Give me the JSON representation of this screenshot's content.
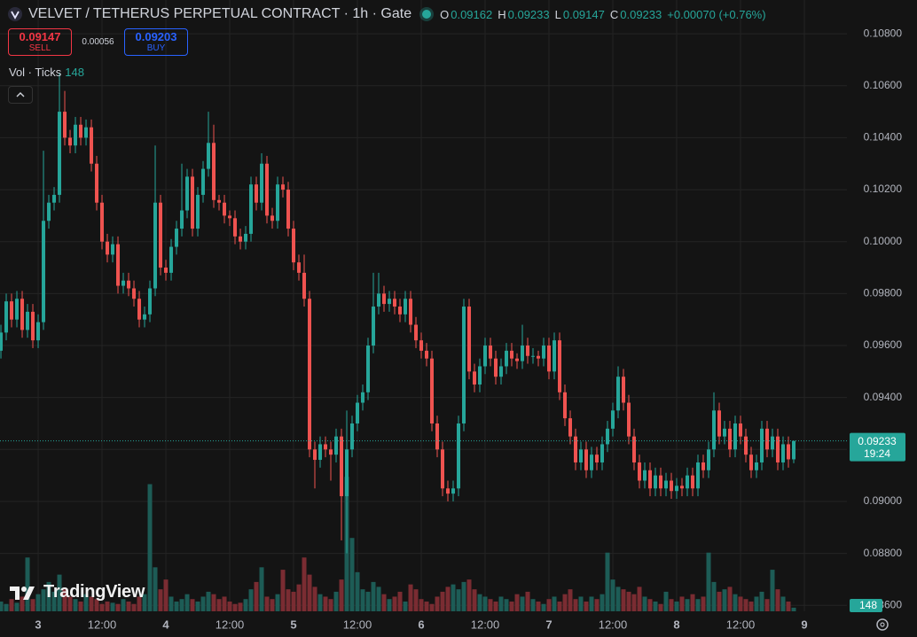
{
  "header": {
    "title": "VELVET / TETHERUS PERPETUAL CONTRACT · 1h · Gate",
    "ohlc": [
      {
        "label": "O",
        "value": "0.09162"
      },
      {
        "label": "H",
        "value": "0.09233"
      },
      {
        "label": "L",
        "value": "0.09147"
      },
      {
        "label": "C",
        "value": "0.09233"
      }
    ],
    "change": "+0.00070 (+0.76%)"
  },
  "trade": {
    "sell_price": "0.09147",
    "sell_label": "SELL",
    "spread": "0.00056",
    "buy_price": "0.09203",
    "buy_label": "BUY"
  },
  "volume_legend": {
    "label": "Vol · Ticks",
    "value": "148"
  },
  "watermark": "TradingView",
  "chart_data": {
    "type": "candlestick",
    "up_color": "#26a69a",
    "down_color": "#ef5350",
    "volume_up_color": "#1d5c56",
    "volume_down_color": "#7a2c32",
    "grid": true,
    "countdown": "19:24",
    "xlim": [
      -0.17,
      159
    ],
    "xticks": [
      {
        "value": 7,
        "label": "3"
      },
      {
        "value": 19,
        "label": "12:00"
      },
      {
        "value": 31,
        "label": "4"
      },
      {
        "value": 43,
        "label": "12:00"
      },
      {
        "value": 55,
        "label": "5"
      },
      {
        "value": 67,
        "label": "12:00"
      },
      {
        "value": 79,
        "label": "6"
      },
      {
        "value": 91,
        "label": "12:00"
      },
      {
        "value": 103,
        "label": "7"
      },
      {
        "value": 115,
        "label": "12:00"
      },
      {
        "value": 127,
        "label": "8"
      },
      {
        "value": 139,
        "label": "12:00"
      },
      {
        "value": 151,
        "label": "9"
      }
    ],
    "ylim": [
      0.08577,
      0.1093
    ],
    "yticks": [
      {
        "value": 0.108,
        "label": "0.10800"
      },
      {
        "value": 0.106,
        "label": "0.10600"
      },
      {
        "value": 0.104,
        "label": "0.10400"
      },
      {
        "value": 0.102,
        "label": "0.10200"
      },
      {
        "value": 0.1,
        "label": "0.10000"
      },
      {
        "value": 0.098,
        "label": "0.09800"
      },
      {
        "value": 0.096,
        "label": "0.09600"
      },
      {
        "value": 0.094,
        "label": "0.09400"
      },
      {
        "value": 0.092,
        "label": "0.09200"
      },
      {
        "value": 0.09,
        "label": "0.09000"
      },
      {
        "value": 0.088,
        "label": "0.08800"
      },
      {
        "value": 0.086,
        "label": "0.08600"
      }
    ],
    "volume_ylim": [
      0,
      25000
    ],
    "open": [
      0.0958,
      0.0965,
      0.0977,
      0.097,
      0.0978,
      0.0966,
      0.0973,
      0.0962,
      0.0969,
      0.1008,
      0.1015,
      0.1018,
      0.105,
      0.104,
      0.1037,
      0.1045,
      0.104,
      0.1044,
      0.103,
      0.1015,
      0.1,
      0.0995,
      0.0999,
      0.0983,
      0.0985,
      0.0982,
      0.0978,
      0.097,
      0.0972,
      0.0982,
      0.1015,
      0.099,
      0.0988,
      0.0998,
      0.1005,
      0.1012,
      0.1025,
      0.1005,
      0.1018,
      0.1028,
      0.1038,
      0.1016,
      0.1015,
      0.101,
      0.1009,
      0.1002,
      0.1,
      0.1003,
      0.1022,
      0.1015,
      0.103,
      0.101,
      0.1008,
      0.1022,
      0.102,
      0.1005,
      0.0992,
      0.0988,
      0.0978,
      0.092,
      0.0916,
      0.0922,
      0.092,
      0.0918,
      0.0925,
      0.0902,
      0.092,
      0.093,
      0.0938,
      0.0942,
      0.096,
      0.0975,
      0.098,
      0.0976,
      0.0978,
      0.0975,
      0.0972,
      0.0978,
      0.0968,
      0.0962,
      0.0958,
      0.0955,
      0.093,
      0.092,
      0.0905,
      0.0903,
      0.0905,
      0.093,
      0.0975,
      0.095,
      0.0945,
      0.0952,
      0.096,
      0.0955,
      0.0948,
      0.0952,
      0.0958,
      0.0955,
      0.0954,
      0.096,
      0.0956,
      0.0956,
      0.0955,
      0.096,
      0.095,
      0.0962,
      0.0942,
      0.0932,
      0.0925,
      0.0915,
      0.092,
      0.0912,
      0.0918,
      0.0915,
      0.0922,
      0.0928,
      0.0935,
      0.0948,
      0.0938,
      0.0925,
      0.0915,
      0.0908,
      0.0912,
      0.0905,
      0.091,
      0.0905,
      0.0908,
      0.0904,
      0.0906,
      0.0905,
      0.091,
      0.0905,
      0.0915,
      0.0912,
      0.092,
      0.0935,
      0.0925,
      0.0928,
      0.092,
      0.093,
      0.0925,
      0.0918,
      0.0912,
      0.0915,
      0.0928,
      0.092,
      0.0925,
      0.0915,
      0.0922,
      0.09162
    ],
    "high": [
      0.0968,
      0.098,
      0.098,
      0.0981,
      0.0981,
      0.0976,
      0.0976,
      0.0972,
      0.1035,
      0.1018,
      0.1021,
      0.1065,
      0.1058,
      0.1043,
      0.1048,
      0.1048,
      0.1047,
      0.1047,
      0.1033,
      0.1018,
      0.1003,
      0.1002,
      0.1002,
      0.0988,
      0.0988,
      0.0985,
      0.0981,
      0.0975,
      0.0985,
      0.1037,
      0.1018,
      0.0993,
      0.1001,
      0.1008,
      0.103,
      0.1028,
      0.1028,
      0.1021,
      0.1031,
      0.105,
      0.1045,
      0.1018,
      0.1018,
      0.1012,
      0.1012,
      0.1005,
      0.1006,
      0.1025,
      0.1025,
      0.1034,
      0.1033,
      0.1013,
      0.1025,
      0.1025,
      0.1023,
      0.1008,
      0.0995,
      0.0995,
      0.0981,
      0.0923,
      0.0925,
      0.0925,
      0.0923,
      0.0928,
      0.0928,
      0.0935,
      0.0933,
      0.0941,
      0.0945,
      0.0963,
      0.0988,
      0.0988,
      0.0983,
      0.0981,
      0.0981,
      0.0978,
      0.0981,
      0.0981,
      0.0971,
      0.0965,
      0.0961,
      0.0958,
      0.0933,
      0.0923,
      0.0908,
      0.0908,
      0.0933,
      0.0978,
      0.0978,
      0.0953,
      0.0955,
      0.0963,
      0.0963,
      0.0958,
      0.0955,
      0.0961,
      0.0961,
      0.0957,
      0.0968,
      0.0963,
      0.0959,
      0.0958,
      0.0963,
      0.0963,
      0.0965,
      0.0965,
      0.0945,
      0.0935,
      0.0928,
      0.0923,
      0.0923,
      0.0921,
      0.0921,
      0.0925,
      0.0931,
      0.0938,
      0.0952,
      0.0951,
      0.0941,
      0.0928,
      0.0918,
      0.0915,
      0.0915,
      0.0913,
      0.0913,
      0.0911,
      0.0911,
      0.0909,
      0.0909,
      0.0913,
      0.0913,
      0.0918,
      0.0918,
      0.0923,
      0.0942,
      0.0938,
      0.0931,
      0.0931,
      0.0933,
      0.0933,
      0.0928,
      0.0921,
      0.0918,
      0.0931,
      0.0931,
      0.0928,
      0.0928,
      0.0925,
      0.0925,
      0.09233
    ],
    "low": [
      0.0955,
      0.0962,
      0.0967,
      0.0967,
      0.0963,
      0.0963,
      0.0959,
      0.0959,
      0.0966,
      0.1005,
      0.1012,
      0.1015,
      0.1037,
      0.1034,
      0.1034,
      0.1037,
      0.1037,
      0.1027,
      0.1012,
      0.0997,
      0.0992,
      0.0992,
      0.098,
      0.098,
      0.0979,
      0.0975,
      0.0967,
      0.0967,
      0.0969,
      0.0979,
      0.0987,
      0.0985,
      0.0985,
      0.0995,
      0.1002,
      0.1009,
      0.1002,
      0.1002,
      0.1015,
      0.1025,
      0.1013,
      0.1012,
      0.1007,
      0.1006,
      0.0999,
      0.0997,
      0.0997,
      0.1,
      0.1012,
      0.1012,
      0.1007,
      0.1005,
      0.1005,
      0.1017,
      0.1002,
      0.0989,
      0.0985,
      0.0975,
      0.0917,
      0.0905,
      0.0913,
      0.0917,
      0.0908,
      0.0915,
      0.0885,
      0.088,
      0.0917,
      0.0927,
      0.0935,
      0.0939,
      0.0957,
      0.0972,
      0.0973,
      0.0973,
      0.0972,
      0.0969,
      0.0969,
      0.0965,
      0.0959,
      0.0955,
      0.0952,
      0.0927,
      0.0917,
      0.0902,
      0.09,
      0.09,
      0.0902,
      0.0927,
      0.0947,
      0.0942,
      0.0942,
      0.0949,
      0.0952,
      0.0945,
      0.0945,
      0.0949,
      0.0952,
      0.0951,
      0.0951,
      0.0953,
      0.0953,
      0.0952,
      0.0952,
      0.0947,
      0.0947,
      0.0939,
      0.0929,
      0.0922,
      0.0912,
      0.0912,
      0.0909,
      0.0909,
      0.0912,
      0.0912,
      0.0919,
      0.0925,
      0.0932,
      0.0935,
      0.0922,
      0.0912,
      0.0905,
      0.0905,
      0.0902,
      0.0902,
      0.0902,
      0.0902,
      0.0901,
      0.0901,
      0.0902,
      0.0902,
      0.0902,
      0.0902,
      0.0909,
      0.0909,
      0.0917,
      0.0922,
      0.0922,
      0.0917,
      0.0917,
      0.0922,
      0.0915,
      0.0909,
      0.0909,
      0.0912,
      0.0917,
      0.0917,
      0.0912,
      0.0912,
      0.0913,
      0.09147
    ],
    "close": [
      0.0965,
      0.0977,
      0.097,
      0.0978,
      0.0966,
      0.0973,
      0.0962,
      0.0969,
      0.1008,
      0.1015,
      0.1018,
      0.105,
      0.104,
      0.1037,
      0.1045,
      0.104,
      0.1044,
      0.103,
      0.1015,
      0.1,
      0.0995,
      0.0999,
      0.0983,
      0.0985,
      0.0982,
      0.0978,
      0.097,
      0.0972,
      0.0982,
      0.1015,
      0.099,
      0.0988,
      0.0998,
      0.1005,
      0.1012,
      0.1025,
      0.1005,
      0.1018,
      0.1028,
      0.1038,
      0.1016,
      0.1015,
      0.101,
      0.1009,
      0.1002,
      0.1,
      0.1003,
      0.1022,
      0.1015,
      0.103,
      0.101,
      0.1008,
      0.1022,
      0.102,
      0.1005,
      0.0992,
      0.0988,
      0.0978,
      0.092,
      0.0916,
      0.0922,
      0.092,
      0.0918,
      0.0925,
      0.0902,
      0.092,
      0.093,
      0.0938,
      0.0942,
      0.096,
      0.0975,
      0.098,
      0.0976,
      0.0978,
      0.0975,
      0.0972,
      0.0978,
      0.0968,
      0.0962,
      0.0958,
      0.0955,
      0.093,
      0.092,
      0.0905,
      0.0903,
      0.0905,
      0.093,
      0.0975,
      0.095,
      0.0945,
      0.0952,
      0.096,
      0.0955,
      0.0948,
      0.0952,
      0.0958,
      0.0955,
      0.0954,
      0.096,
      0.0956,
      0.0956,
      0.0955,
      0.096,
      0.095,
      0.0962,
      0.0942,
      0.0932,
      0.0925,
      0.0915,
      0.092,
      0.0912,
      0.0918,
      0.0915,
      0.0922,
      0.0928,
      0.0935,
      0.0948,
      0.0938,
      0.0925,
      0.0915,
      0.0908,
      0.0912,
      0.0905,
      0.091,
      0.0905,
      0.0908,
      0.0904,
      0.0906,
      0.0905,
      0.091,
      0.0905,
      0.0915,
      0.0912,
      0.092,
      0.0935,
      0.0925,
      0.0928,
      0.092,
      0.093,
      0.0925,
      0.0918,
      0.0912,
      0.0915,
      0.0928,
      0.092,
      0.0925,
      0.0915,
      0.0922,
      0.09162,
      0.09233
    ],
    "volume": [
      400,
      300,
      500,
      350,
      600,
      2200,
      500,
      700,
      900,
      1200,
      800,
      1500,
      900,
      600,
      500,
      400,
      700,
      600,
      500,
      300,
      400,
      350,
      300,
      500,
      400,
      300,
      600,
      700,
      5200,
      1800,
      900,
      1300,
      600,
      400,
      500,
      700,
      500,
      400,
      600,
      800,
      700,
      500,
      600,
      400,
      300,
      350,
      500,
      900,
      1200,
      1800,
      600,
      500,
      700,
      1700,
      900,
      800,
      1100,
      2200,
      1500,
      1000,
      700,
      600,
      500,
      800,
      1300,
      5500,
      3000,
      1600,
      900,
      800,
      1200,
      1000,
      700,
      500,
      600,
      800,
      400,
      1100,
      900,
      500,
      400,
      300,
      600,
      800,
      1000,
      1100,
      900,
      1200,
      1300,
      900,
      700,
      600,
      500,
      400,
      600,
      500,
      400,
      700,
      600,
      800,
      500,
      400,
      300,
      500,
      600,
      400,
      700,
      900,
      500,
      600,
      400,
      600,
      500,
      700,
      2400,
      1300,
      1000,
      900,
      800,
      700,
      1000,
      600,
      500,
      400,
      300,
      800,
      500,
      400,
      600,
      500,
      700,
      500,
      600,
      2400,
      1200,
      800,
      900,
      1000,
      700,
      600,
      500,
      400,
      600,
      800,
      500,
      1700,
      900,
      600,
      400,
      148
    ]
  }
}
